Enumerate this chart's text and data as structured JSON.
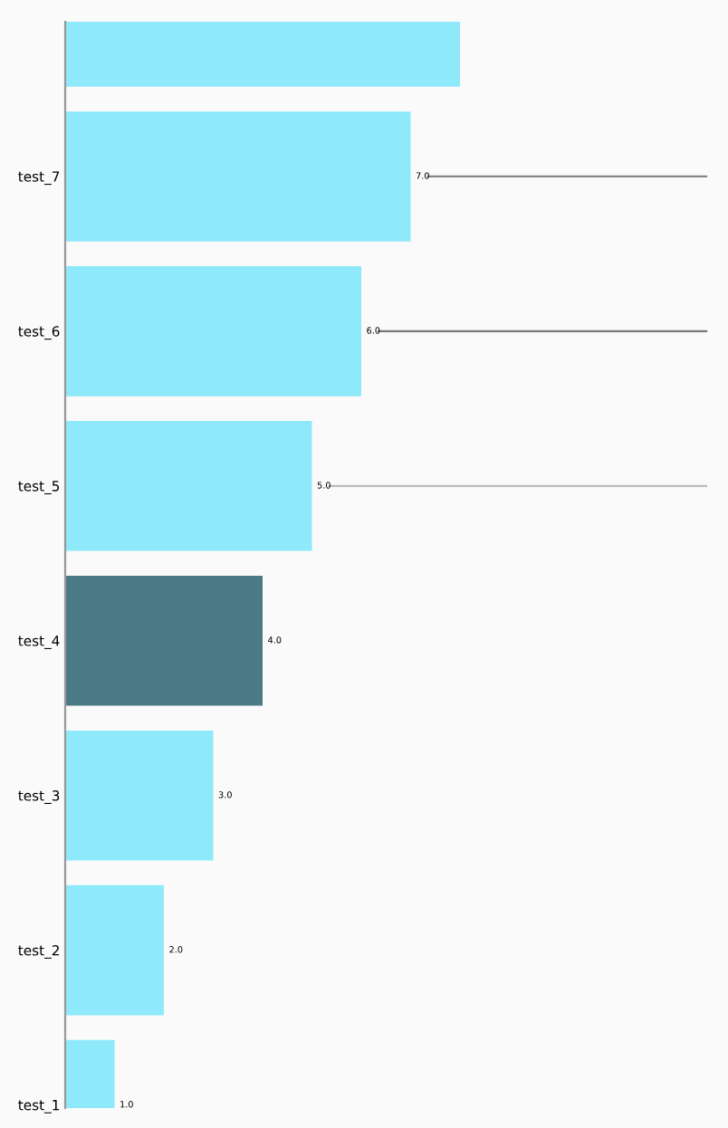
{
  "chart_data": {
    "type": "bar",
    "orientation": "horizontal",
    "categories": [
      null,
      "test_7",
      "test_6",
      "test_5",
      "test_4",
      "test_3",
      "test_2",
      "test_1"
    ],
    "values": [
      8,
      7,
      6,
      5,
      4,
      3,
      2,
      1
    ],
    "colors": [
      "#8ee9fb",
      "#8ee9fb",
      "#8ee9fb",
      "#8ee9fb",
      "#4a7a86",
      "#8ee9fb",
      "#8ee9fb",
      "#8ee9fb"
    ],
    "value_labels": [
      null,
      "7.0",
      "6.0",
      "5.0",
      "4.0",
      "3.0",
      "2.0",
      "1.0"
    ],
    "tick_labels": "y",
    "grid": false,
    "legend": false,
    "ref_lines": [
      {
        "axis": "y",
        "value": "test_7",
        "color": "#888888"
      },
      {
        "axis": "y",
        "value": "test_6",
        "color": "#777777"
      },
      {
        "axis": "y",
        "value": "test_5",
        "color": "#bbbbbb"
      }
    ]
  }
}
